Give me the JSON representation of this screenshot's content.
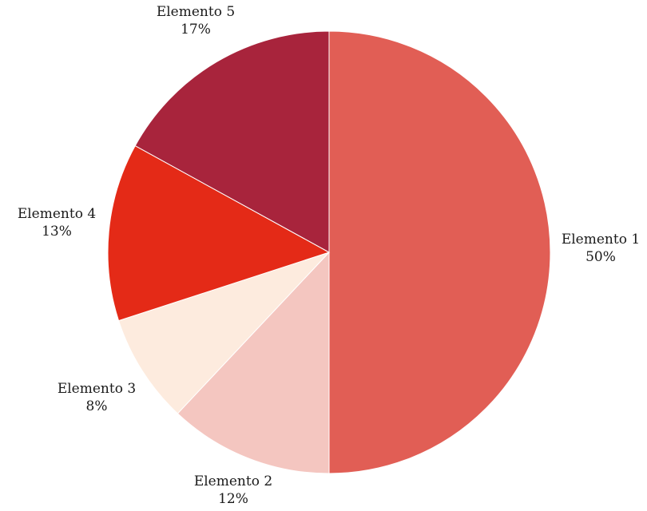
{
  "chart_data": {
    "type": "pie",
    "title": "",
    "start": "12 o'clock",
    "direction": "clockwise",
    "slices": [
      {
        "label": "Elemento 1",
        "value": 50,
        "percent_label": "50%",
        "color": "#E15E55"
      },
      {
        "label": "Elemento 2",
        "value": 12,
        "percent_label": "12%",
        "color": "#F4C6C0"
      },
      {
        "label": "Elemento 3",
        "value": 8,
        "percent_label": "8%",
        "color": "#FDEBDE"
      },
      {
        "label": "Elemento 4",
        "value": 13,
        "percent_label": "13%",
        "color": "#E42A17"
      },
      {
        "label": "Elemento 5",
        "value": 17,
        "percent_label": "17%",
        "color": "#A8243C"
      }
    ]
  }
}
